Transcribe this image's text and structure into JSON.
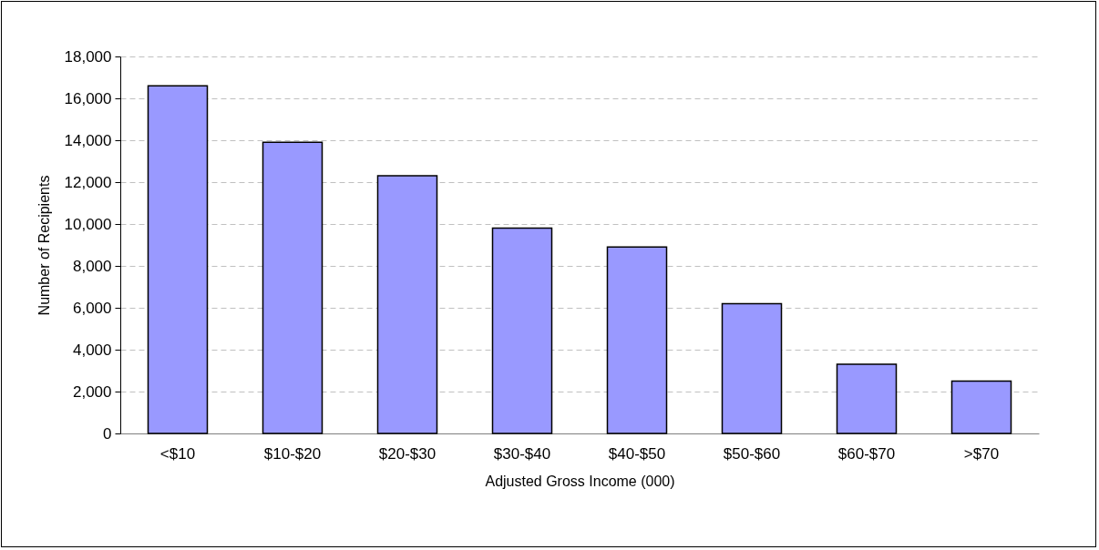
{
  "chart_data": {
    "type": "bar",
    "xlabel": "Adjusted Gross Income (000)",
    "ylabel": "Number of Recipients",
    "categories": [
      "<$10",
      "$10-$20",
      "$20-$30",
      "$30-$40",
      "$40-$50",
      "$50-$60",
      "$60-$70",
      ">$70"
    ],
    "values": [
      16600,
      13900,
      12300,
      9800,
      8900,
      6200,
      3300,
      2500
    ],
    "color": "#9999ff",
    "ylim": [
      0,
      18000
    ],
    "yticks": [
      0,
      {
        "value": 2000,
        "label": "2,000"
      },
      {
        "value": 4000,
        "label": "4,000"
      },
      {
        "value": 6000,
        "label": "6,000"
      },
      {
        "value": 8000,
        "label": "8,000"
      },
      {
        "value": 10000,
        "label": "10,000"
      },
      {
        "value": 12000,
        "label": "12,000"
      },
      {
        "value": 14000,
        "label": "14,000"
      },
      {
        "value": 16000,
        "label": "16,000"
      },
      {
        "value": 18000,
        "label": "18,000"
      }
    ],
    "grid": "y"
  }
}
